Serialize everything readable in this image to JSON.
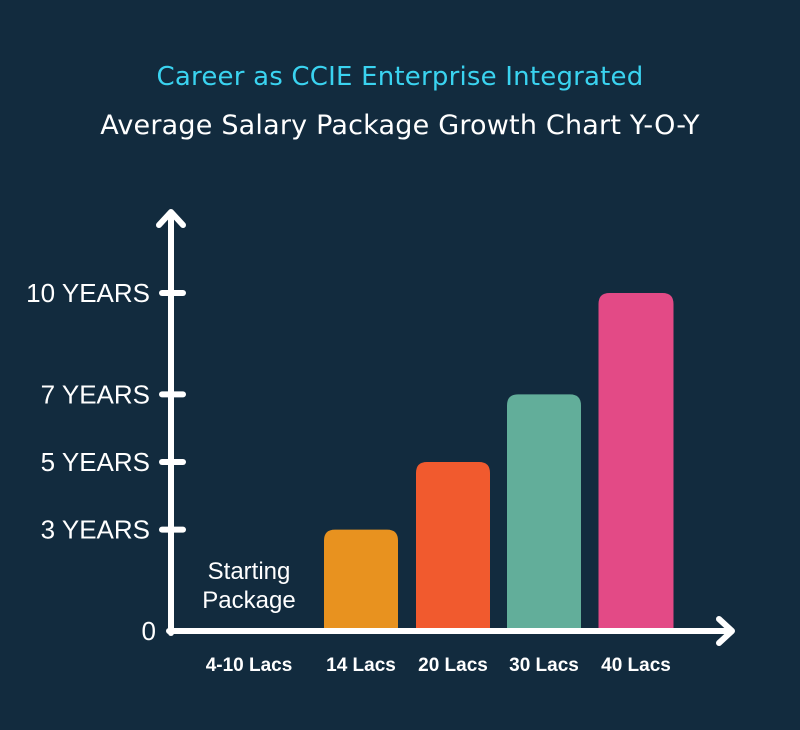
{
  "header": {
    "title": "Career as CCIE Enterprise Integrated",
    "subtitle": "Average Salary Package Growth Chart Y-O-Y"
  },
  "colors": {
    "background": "#122b3e",
    "title": "#3ad3f0",
    "axis": "#ffffff"
  },
  "chart_data": {
    "type": "bar",
    "title": "Career as CCIE Enterprise Integrated",
    "subtitle": "Average Salary Package Growth Chart Y-O-Y",
    "categories": [
      "4-10 Lacs",
      "14 Lacs",
      "20 Lacs",
      "30 Lacs",
      "40 Lacs"
    ],
    "values": [
      0,
      3,
      5,
      7,
      10
    ],
    "bar_colors": [
      "",
      "#e8921f",
      "#f15a2e",
      "#62ae9a",
      "#e34a86"
    ],
    "y_ticks": [
      {
        "value": 0,
        "label": "0"
      },
      {
        "value": 3,
        "label": "3 YEARS"
      },
      {
        "value": 5,
        "label": "5 YEARS"
      },
      {
        "value": 7,
        "label": "7 YEARS"
      },
      {
        "value": 10,
        "label": "10 YEARS"
      }
    ],
    "annotations": [
      {
        "category": "4-10 Lacs",
        "lines": [
          "Starting",
          "Package"
        ]
      }
    ],
    "xlabel": "",
    "ylabel": "",
    "grid": false,
    "legend": "none"
  }
}
